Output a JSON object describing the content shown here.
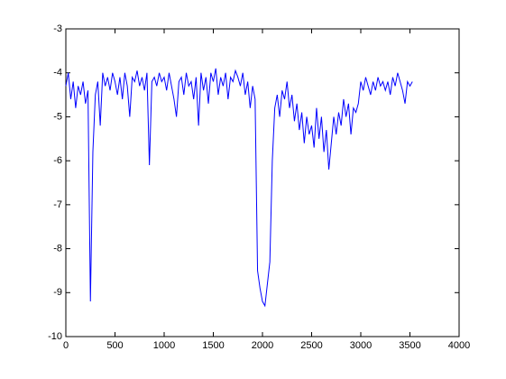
{
  "chart_data": {
    "type": "line",
    "x": [
      0,
      25,
      50,
      75,
      100,
      125,
      150,
      175,
      200,
      225,
      250,
      275,
      300,
      325,
      350,
      375,
      400,
      425,
      450,
      475,
      500,
      525,
      550,
      575,
      600,
      625,
      650,
      675,
      700,
      725,
      750,
      775,
      800,
      825,
      850,
      875,
      900,
      925,
      950,
      975,
      1000,
      1025,
      1050,
      1075,
      1100,
      1125,
      1150,
      1175,
      1200,
      1225,
      1250,
      1275,
      1300,
      1325,
      1350,
      1375,
      1400,
      1425,
      1450,
      1475,
      1500,
      1525,
      1550,
      1575,
      1600,
      1625,
      1650,
      1675,
      1700,
      1725,
      1750,
      1775,
      1800,
      1825,
      1850,
      1875,
      1900,
      1925,
      1950,
      1975,
      2000,
      2025,
      2050,
      2075,
      2100,
      2125,
      2150,
      2175,
      2200,
      2225,
      2250,
      2275,
      2300,
      2325,
      2350,
      2375,
      2400,
      2425,
      2450,
      2475,
      2500,
      2525,
      2550,
      2575,
      2600,
      2625,
      2650,
      2675,
      2700,
      2725,
      2750,
      2775,
      2800,
      2825,
      2850,
      2875,
      2900,
      2925,
      2950,
      2975,
      3000,
      3025,
      3050,
      3075,
      3100,
      3125,
      3150,
      3175,
      3200,
      3225,
      3250,
      3275,
      3300,
      3325,
      3350,
      3375,
      3400,
      3425,
      3450,
      3475,
      3500,
      3525
    ],
    "series": [
      {
        "color": "#0000ff",
        "values": [
          -4.3,
          -4.0,
          -4.6,
          -4.2,
          -4.8,
          -4.3,
          -4.5,
          -4.2,
          -4.7,
          -4.4,
          -9.2,
          -5.8,
          -4.5,
          -4.2,
          -5.2,
          -4.0,
          -4.3,
          -4.1,
          -4.4,
          -4.0,
          -4.2,
          -4.5,
          -4.1,
          -4.6,
          -4.0,
          -4.3,
          -5.0,
          -4.1,
          -4.2,
          -3.95,
          -4.3,
          -4.1,
          -4.4,
          -4.0,
          -6.1,
          -4.2,
          -4.1,
          -4.3,
          -4.0,
          -4.2,
          -4.1,
          -4.4,
          -4.0,
          -4.3,
          -4.6,
          -5.0,
          -4.2,
          -4.1,
          -4.5,
          -4.0,
          -4.3,
          -4.2,
          -4.6,
          -4.1,
          -5.2,
          -4.0,
          -4.4,
          -4.1,
          -4.7,
          -4.0,
          -4.2,
          -3.9,
          -4.5,
          -4.1,
          -4.3,
          -4.0,
          -4.6,
          -4.1,
          -4.2,
          -3.95,
          -4.1,
          -4.3,
          -4.0,
          -4.5,
          -4.2,
          -4.8,
          -4.3,
          -4.6,
          -8.5,
          -8.9,
          -9.2,
          -9.3,
          -8.8,
          -8.3,
          -6.0,
          -4.8,
          -4.5,
          -5.0,
          -4.4,
          -4.6,
          -4.2,
          -4.8,
          -4.5,
          -5.1,
          -4.7,
          -5.3,
          -4.9,
          -5.6,
          -5.0,
          -5.4,
          -5.2,
          -5.7,
          -4.8,
          -5.5,
          -5.0,
          -5.8,
          -5.3,
          -6.2,
          -5.6,
          -5.0,
          -5.4,
          -4.9,
          -5.2,
          -4.6,
          -5.0,
          -4.7,
          -5.4,
          -4.8,
          -4.9,
          -4.7,
          -4.2,
          -4.4,
          -4.1,
          -4.3,
          -4.5,
          -4.2,
          -4.4,
          -4.1,
          -4.3,
          -4.2,
          -4.4,
          -4.2,
          -4.5,
          -4.1,
          -4.3,
          -4.0,
          -4.2,
          -4.4,
          -4.7,
          -4.2,
          -4.3,
          -4.2
        ]
      }
    ],
    "xlim": [
      0,
      4000
    ],
    "xticks": [
      0,
      500,
      1000,
      1500,
      2000,
      2500,
      3000,
      3500,
      4000
    ],
    "ylim": [
      -10,
      -3
    ],
    "yticks": [
      -10,
      -9,
      -8,
      -7,
      -6,
      -5,
      -4,
      -3
    ]
  }
}
